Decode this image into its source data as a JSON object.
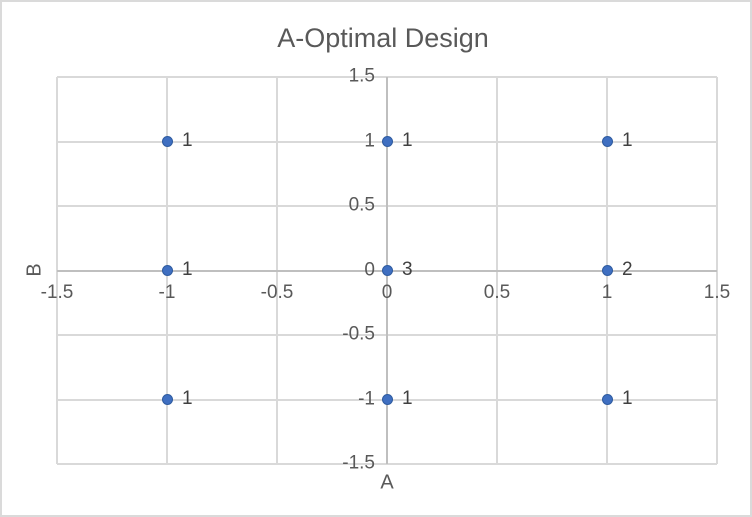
{
  "chart_data": {
    "type": "scatter",
    "title": "A-Optimal Design",
    "xlabel": "A",
    "ylabel": "B",
    "xlim": [
      -1.5,
      1.5
    ],
    "ylim": [
      -1.5,
      1.5
    ],
    "grid": true,
    "legend": "none",
    "axes_cross_at_zero": true,
    "x_tick_values": [
      -1.5,
      -1,
      -0.5,
      0,
      0.5,
      1,
      1.5
    ],
    "x_tick_labels": [
      "-1.5",
      "-1",
      "-0.5",
      "0",
      "0.5",
      "1",
      "1.5"
    ],
    "y_tick_values": [
      1.5,
      1,
      0.5,
      0,
      -0.5,
      -1,
      -1.5
    ],
    "y_tick_labels": [
      "1.5",
      "1",
      "0.5",
      "0",
      "-0.5",
      "-1",
      "-1.5"
    ],
    "points": [
      {
        "x": -1,
        "y": 1,
        "label": "1"
      },
      {
        "x": 0,
        "y": 1,
        "label": "1"
      },
      {
        "x": 1,
        "y": 1,
        "label": "1"
      },
      {
        "x": -1,
        "y": 0,
        "label": "1"
      },
      {
        "x": 0,
        "y": 0,
        "label": "3"
      },
      {
        "x": 1,
        "y": 0,
        "label": "2"
      },
      {
        "x": -1,
        "y": -1,
        "label": "1"
      },
      {
        "x": 0,
        "y": -1,
        "label": "1"
      },
      {
        "x": 1,
        "y": -1,
        "label": "1"
      }
    ],
    "colors": {
      "point_fill": "#3F6FC1",
      "point_border": "#2E5B9F",
      "gridline": "#D9D9D9",
      "axis_line": "#BFBFBF",
      "tick_label": "#595959",
      "data_label": "#404040",
      "title": "#595959",
      "axis_title": "#595959",
      "chart_border": "#DADADA",
      "background": "#FFFFFF"
    }
  }
}
